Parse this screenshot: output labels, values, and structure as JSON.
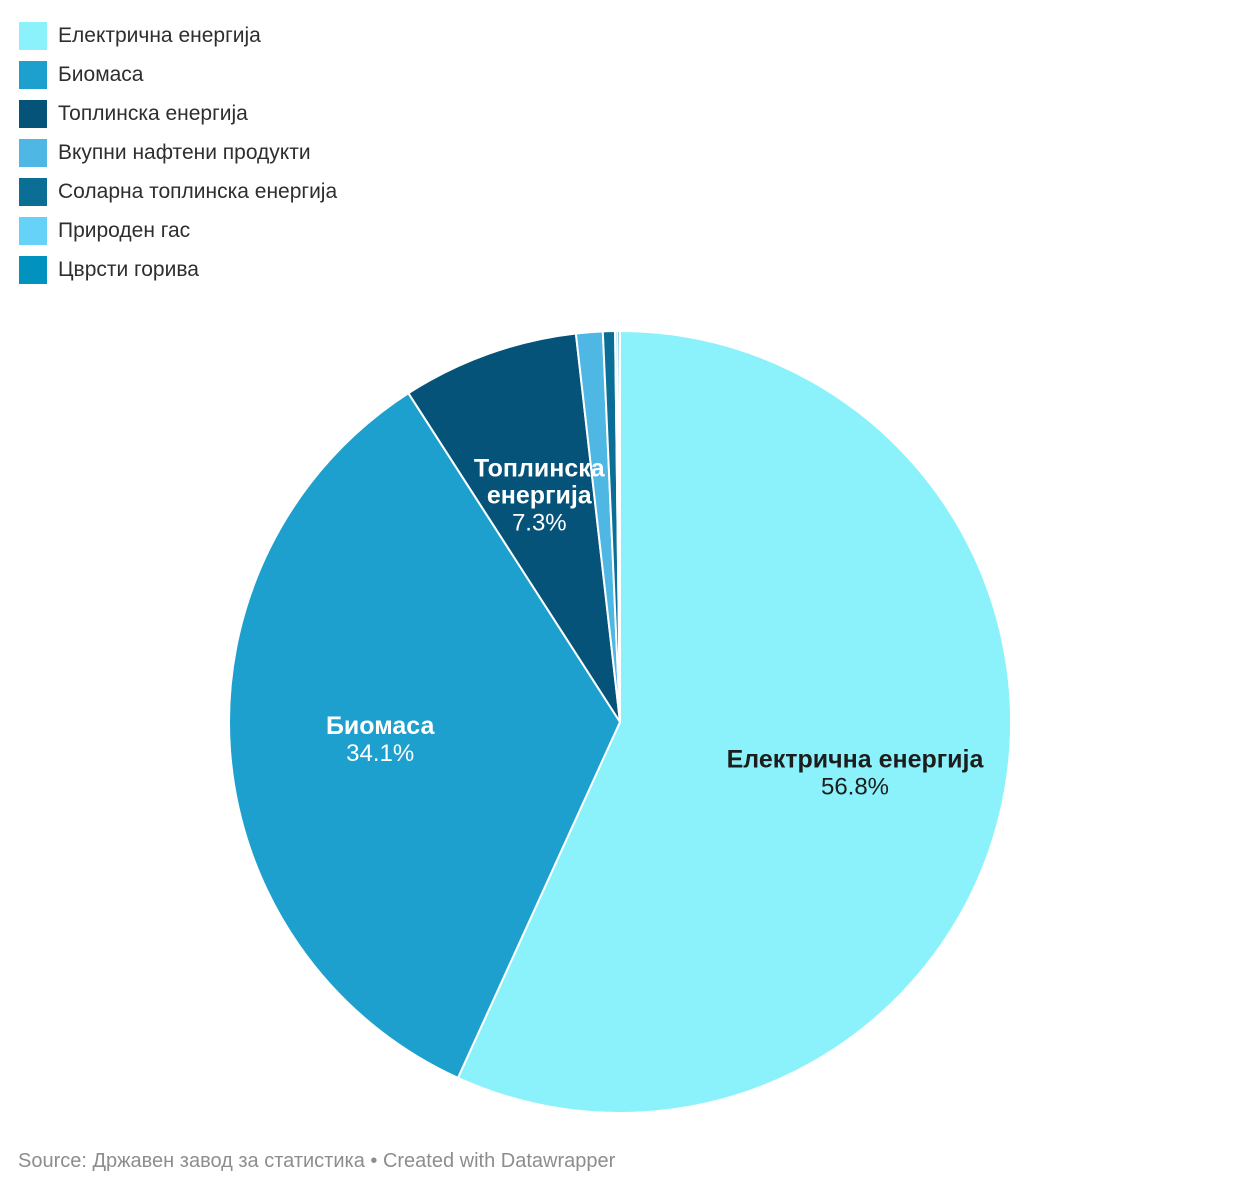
{
  "chart_data": {
    "type": "pie",
    "title": "",
    "legend_position": "top-left",
    "direction": "clockwise",
    "start_angle_deg": 0,
    "stroke_color": "#ffffff",
    "slices": [
      {
        "label": "Електрична енергија",
        "value": 56.8,
        "color": "#8BF2FB",
        "show_label_in_pie": true,
        "label_color": "#1d1d1d"
      },
      {
        "label": "Биомаса",
        "value": 34.1,
        "color": "#1EA0CE",
        "show_label_in_pie": true,
        "label_color": "#ffffff"
      },
      {
        "label": "Топлинска енергија",
        "value": 7.3,
        "color": "#06537A",
        "show_label_in_pie": true,
        "label_color": "#ffffff",
        "label_lines": [
          "Топлинска",
          "енергија"
        ]
      },
      {
        "label": "Вкупни нафтени продукти",
        "value": 1.1,
        "color": "#4EB7E3",
        "show_label_in_pie": false
      },
      {
        "label": "Соларна топлинска енергија",
        "value": 0.5,
        "color": "#0A6E96",
        "show_label_in_pie": false
      },
      {
        "label": "Природен гас",
        "value": 0.1,
        "color": "#66D2F7",
        "show_label_in_pie": false
      },
      {
        "label": "Цврсти горива",
        "value": 0.1,
        "color": "#0292BF",
        "show_label_in_pie": false
      }
    ]
  },
  "footer": {
    "source_text": "Source: Државен завод за статистика • Created with Datawrapper"
  }
}
